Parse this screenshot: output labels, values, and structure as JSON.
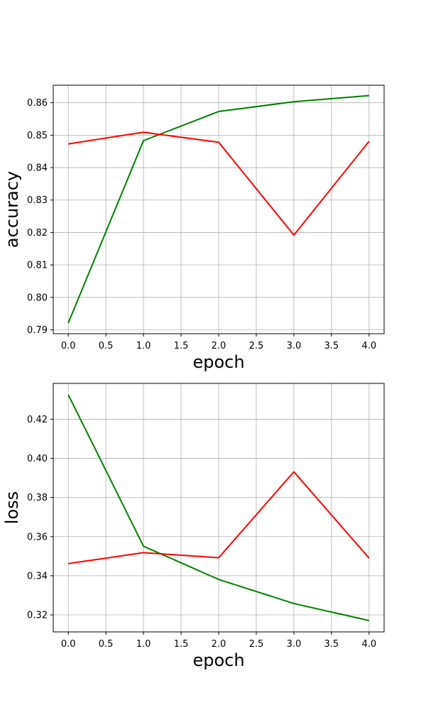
{
  "chart_data": [
    {
      "type": "line",
      "xlabel": "epoch",
      "ylabel": "accuracy",
      "x": [
        0,
        1,
        2,
        3,
        4
      ],
      "xlim": [
        -0.2,
        4.2
      ],
      "ylim": [
        0.7888,
        0.8654
      ],
      "xticks": [
        "0.0",
        "0.5",
        "1.0",
        "1.5",
        "2.0",
        "2.5",
        "3.0",
        "3.5",
        "4.0"
      ],
      "yticks": [
        "0.79",
        "0.80",
        "0.81",
        "0.82",
        "0.83",
        "0.84",
        "0.85",
        "0.86"
      ],
      "grid": true,
      "series": [
        {
          "color": "#008000",
          "values": [
            0.7921,
            0.8483,
            0.8573,
            0.8603,
            0.8622
          ]
        },
        {
          "color": "#ff0000",
          "values": [
            0.8473,
            0.8509,
            0.8478,
            0.8192,
            0.8481
          ]
        }
      ]
    },
    {
      "type": "line",
      "xlabel": "epoch",
      "ylabel": "loss",
      "x": [
        0,
        1,
        2,
        3,
        4
      ],
      "xlim": [
        -0.2,
        4.2
      ],
      "ylim": [
        0.3113,
        0.4383
      ],
      "xticks": [
        "0.0",
        "0.5",
        "1.0",
        "1.5",
        "2.0",
        "2.5",
        "3.0",
        "3.5",
        "4.0"
      ],
      "yticks": [
        "0.32",
        "0.34",
        "0.36",
        "0.38",
        "0.40",
        "0.42"
      ],
      "grid": true,
      "series": [
        {
          "color": "#008000",
          "values": [
            0.4325,
            0.3551,
            0.3381,
            0.3258,
            0.3171
          ]
        },
        {
          "color": "#ff0000",
          "values": [
            0.3462,
            0.3518,
            0.3492,
            0.3931,
            0.349
          ]
        }
      ]
    }
  ]
}
